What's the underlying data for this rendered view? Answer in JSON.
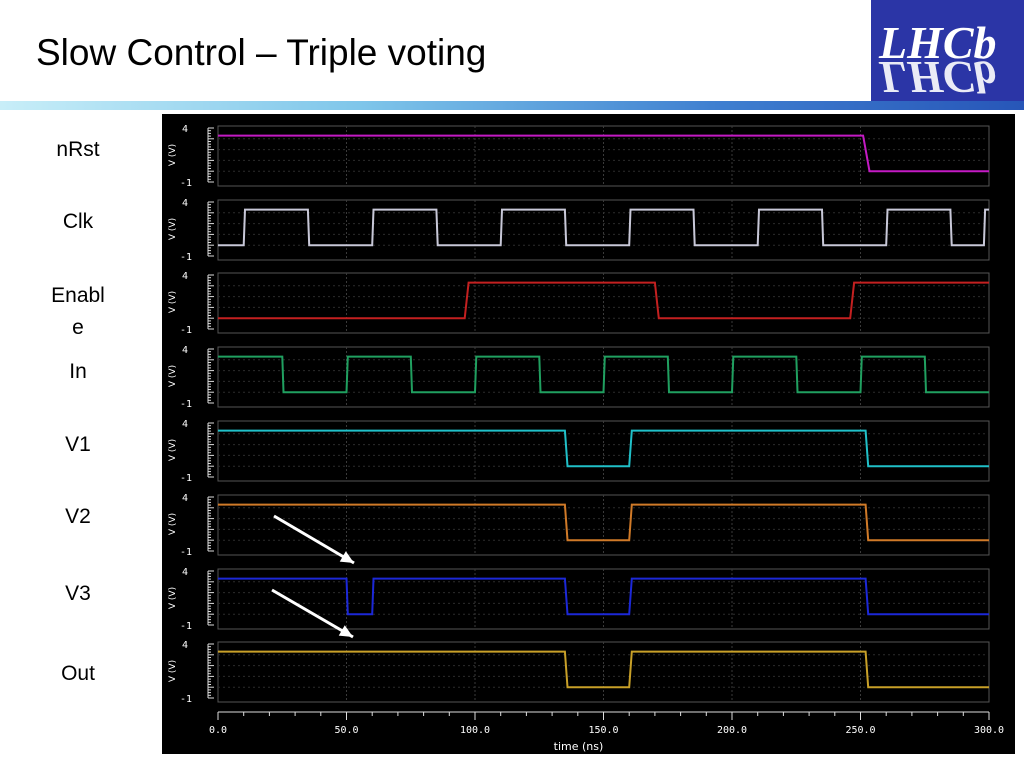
{
  "slide": {
    "title": "Slow Control – Triple voting",
    "logo_text": "LHCb"
  },
  "signal_labels": [
    "nRst",
    "Clk",
    "Enabl\ne",
    "In",
    "V1",
    "V2",
    "V3",
    "Out"
  ],
  "chart_data": {
    "type": "line",
    "xlabel": "time (ns)",
    "xlim": [
      0,
      300
    ],
    "x_ticks": [
      "0.0",
      "50.0",
      "100.0",
      "150.0",
      "200.0",
      "250.0",
      "300.0"
    ],
    "ylabel": "V (V)",
    "ylim": [
      -1,
      4
    ],
    "y_ticks": [
      "4",
      "-1"
    ],
    "grid": true,
    "series": [
      {
        "color": "#c41ac4",
        "x": [
          0,
          251,
          253.5,
          300
        ],
        "y": [
          3.3,
          3.3,
          0,
          0
        ]
      },
      {
        "color": "#c8c8d8",
        "x": [
          0,
          10,
          10.5,
          35,
          35.5,
          60,
          60.5,
          85,
          85.5,
          110,
          110.5,
          135,
          135.5,
          160,
          160.5,
          185,
          185.5,
          210,
          210.5,
          235,
          235.5,
          260,
          260.5,
          285,
          285.5,
          298,
          298.5,
          300
        ],
        "y": [
          0,
          0,
          3.3,
          3.3,
          0,
          0,
          3.3,
          3.3,
          0,
          0,
          3.3,
          3.3,
          0,
          0,
          3.3,
          3.3,
          0,
          0,
          3.3,
          3.3,
          0,
          0,
          3.3,
          3.3,
          0,
          0,
          3.3,
          3.3
        ]
      },
      {
        "color": "#c42020",
        "x": [
          0,
          96,
          97.5,
          170,
          171.5,
          246,
          247.5,
          300
        ],
        "y": [
          0,
          0,
          3.3,
          3.3,
          0,
          0,
          3.3,
          3.3
        ]
      },
      {
        "color": "#20a060",
        "x": [
          0,
          25,
          25.5,
          50,
          50.5,
          75,
          75.5,
          100,
          100.5,
          125,
          125.5,
          150,
          150.5,
          175,
          175.5,
          200,
          200.5,
          225,
          225.5,
          250,
          250.5,
          275,
          275.5,
          300
        ],
        "y": [
          3.3,
          3.3,
          0,
          0,
          3.3,
          3.3,
          0,
          0,
          3.3,
          3.3,
          0,
          0,
          3.3,
          3.3,
          0,
          0,
          3.3,
          3.3,
          0,
          0,
          3.3,
          3.3,
          0,
          0
        ]
      },
      {
        "color": "#20c0c8",
        "x": [
          0,
          135,
          136,
          160,
          161,
          252,
          253,
          300
        ],
        "y": [
          3.3,
          3.3,
          0,
          0,
          3.3,
          3.3,
          0,
          0
        ]
      },
      {
        "color": "#d07a28",
        "x": [
          0,
          135,
          136,
          160,
          161,
          252,
          253,
          300
        ],
        "y": [
          3.3,
          3.3,
          0,
          0,
          3.3,
          3.3,
          0,
          0
        ]
      },
      {
        "color": "#1c28d8",
        "x": [
          0,
          50,
          50.5,
          60,
          60.5,
          135,
          136,
          160,
          161,
          252,
          253,
          300
        ],
        "y": [
          3.3,
          3.3,
          0,
          0,
          3.3,
          3.3,
          0,
          0,
          3.3,
          3.3,
          0,
          0
        ]
      },
      {
        "color": "#c8a028",
        "x": [
          0,
          135,
          136,
          160,
          161,
          252,
          253,
          300
        ],
        "y": [
          3.3,
          3.3,
          0,
          0,
          3.3,
          3.3,
          0,
          0
        ]
      }
    ]
  }
}
